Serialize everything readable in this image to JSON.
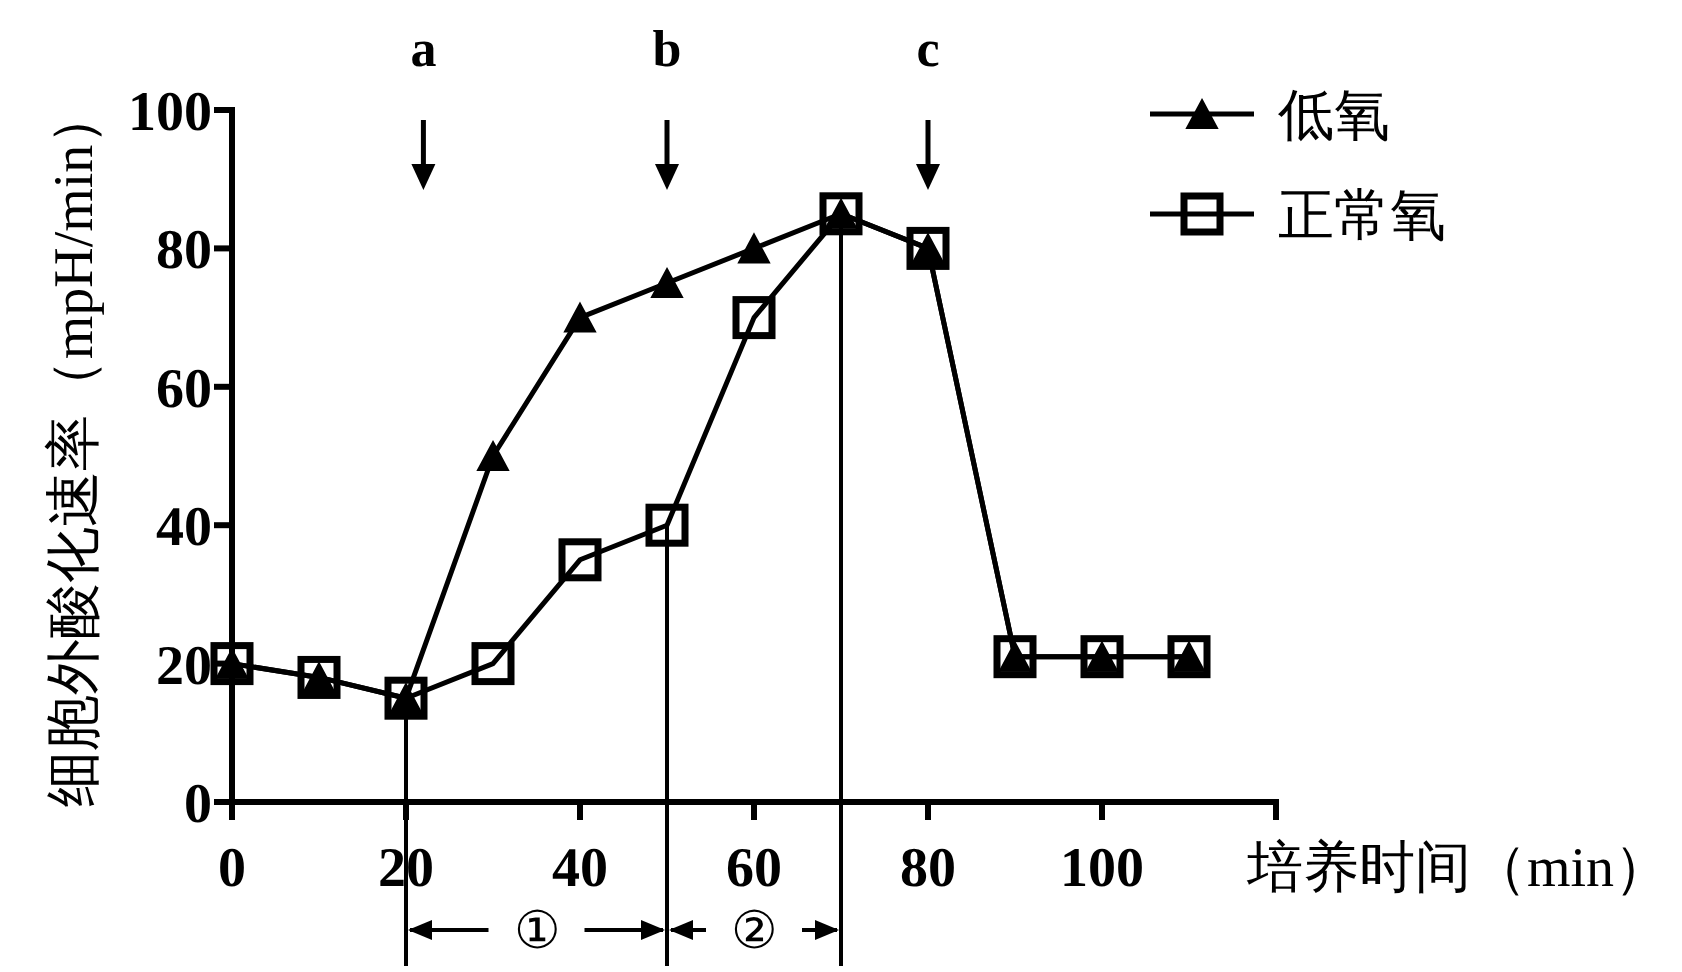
{
  "chart_data": {
    "type": "line",
    "xlabel": "培养时间（min）",
    "ylabel": "细胞外酸化速率（mpH/min）",
    "x": [
      0,
      10,
      20,
      30,
      40,
      50,
      60,
      70,
      80,
      90,
      100,
      110
    ],
    "xlim": [
      0,
      120
    ],
    "xticks": [
      0,
      20,
      40,
      60,
      80,
      100,
      {
        "value": 120,
        "label": null
      }
    ],
    "ylim": [
      0,
      100
    ],
    "yticks": [
      0,
      20,
      40,
      60,
      80,
      100
    ],
    "series": [
      {
        "name": "低氧",
        "color": "#000000",
        "marker": "triangle",
        "values": [
          20,
          18,
          15,
          50,
          70,
          75,
          80,
          85,
          80,
          21,
          21,
          21
        ]
      },
      {
        "name": "正常氧",
        "color": "#000000",
        "marker": "square",
        "values": [
          20,
          18,
          15,
          20,
          35,
          40,
          70,
          85,
          80,
          21,
          21,
          21
        ]
      }
    ],
    "ref_lines": [
      {
        "axis": "x",
        "value": 20,
        "color": "#000000"
      },
      {
        "axis": "x",
        "value": 50,
        "color": "#000000"
      },
      {
        "axis": "x",
        "value": 70,
        "color": "#000000"
      },
      {
        "axis": "x",
        "value": 22,
        "label": "a",
        "color": "#000000"
      },
      {
        "axis": "x",
        "value": 50,
        "label": "b",
        "color": "#000000"
      },
      {
        "axis": "x",
        "value": 80,
        "label": "c",
        "color": "#000000"
      }
    ],
    "annotations": [
      "①",
      "②"
    ],
    "legend": "top right"
  }
}
